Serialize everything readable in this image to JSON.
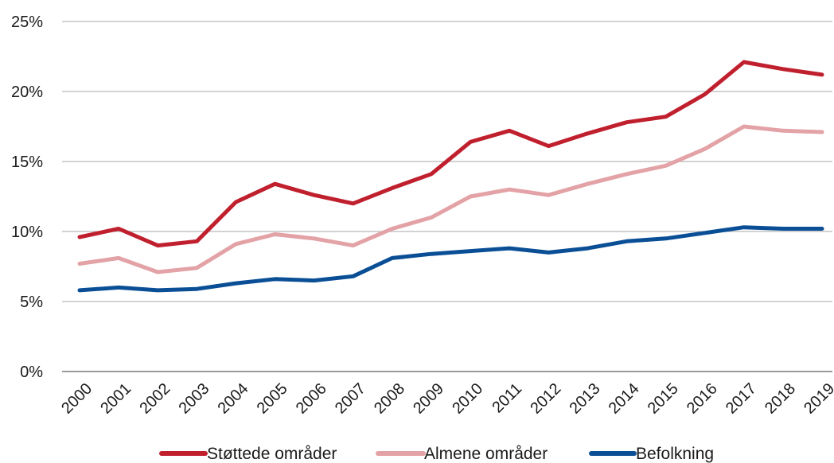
{
  "chart_data": {
    "type": "line",
    "title": "",
    "xlabel": "",
    "ylabel": "",
    "x": [
      "2000",
      "2001",
      "2002",
      "2003",
      "2004",
      "2005",
      "2006",
      "2007",
      "2008",
      "2009",
      "2010",
      "2011",
      "2012",
      "2013",
      "2014",
      "2015",
      "2016",
      "2017",
      "2018",
      "2019"
    ],
    "ylim": [
      0,
      25
    ],
    "y_ticks": [
      {
        "value": 0,
        "label": "0%"
      },
      {
        "value": 5,
        "label": "5%"
      },
      {
        "value": 10,
        "label": "10%"
      },
      {
        "value": 15,
        "label": "15%"
      },
      {
        "value": 20,
        "label": "20%"
      },
      {
        "value": 25,
        "label": "25%"
      }
    ],
    "grid": true,
    "legend_position": "bottom",
    "series": [
      {
        "name": "Støttede områder",
        "color": "#c0202e",
        "values": [
          9.6,
          10.2,
          9.0,
          9.3,
          12.1,
          13.4,
          12.6,
          12.0,
          13.1,
          14.1,
          16.4,
          17.2,
          16.1,
          17.0,
          17.8,
          18.2,
          19.8,
          22.1,
          21.6,
          21.2
        ]
      },
      {
        "name": "Almene områder",
        "color": "#e3a2a6",
        "values": [
          7.7,
          8.1,
          7.1,
          7.4,
          9.1,
          9.8,
          9.5,
          9.0,
          10.2,
          11.0,
          12.5,
          13.0,
          12.6,
          13.4,
          14.1,
          14.7,
          15.9,
          17.5,
          17.2,
          17.1
        ]
      },
      {
        "name": "Befolkning",
        "color": "#0a4f96",
        "values": [
          5.8,
          6.0,
          5.8,
          5.9,
          6.3,
          6.6,
          6.5,
          6.8,
          8.1,
          8.4,
          8.6,
          8.8,
          8.5,
          8.8,
          9.3,
          9.5,
          9.9,
          10.3,
          10.2,
          10.2
        ]
      }
    ]
  }
}
